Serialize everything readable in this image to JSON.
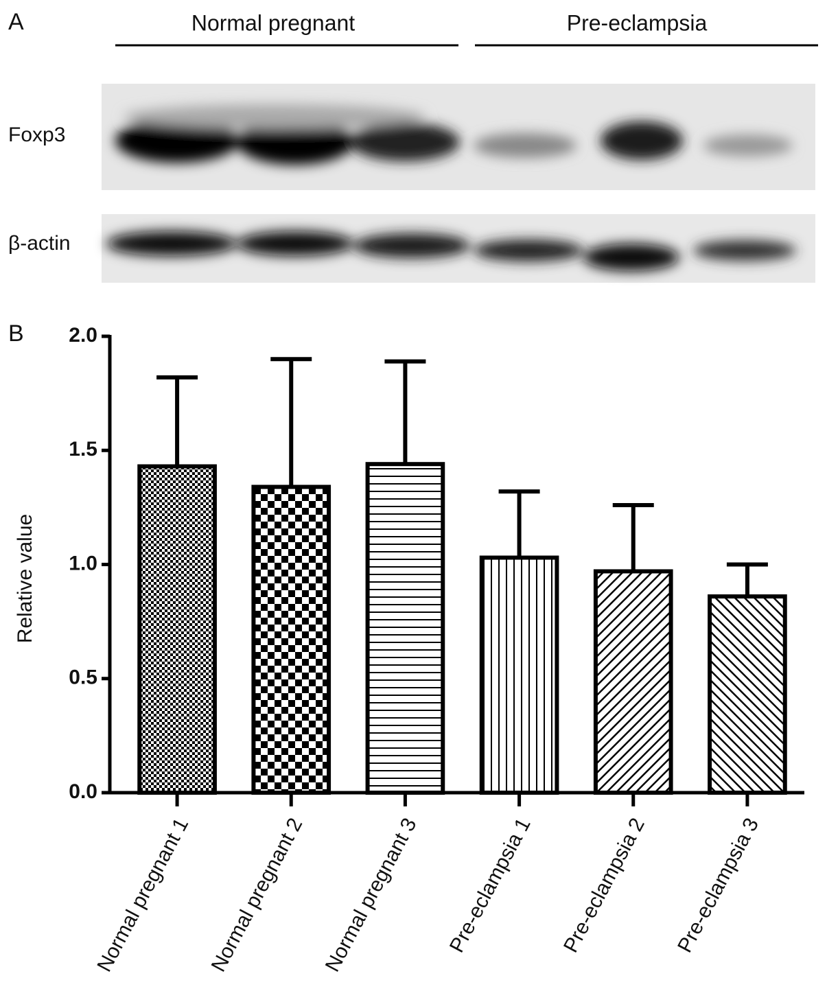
{
  "panel_a": {
    "label": "A",
    "groups": [
      "Normal pregnant",
      "Pre-eclampsia"
    ],
    "rows": [
      "Foxp3",
      "β-actin"
    ]
  },
  "chart_data": {
    "type": "bar",
    "panel_label": "B",
    "y_label": "Relative value",
    "categories": [
      "Normal pregnant 1",
      "Normal pregnant 2",
      "Normal pregnant 3",
      "Pre-eclampsia 1",
      "Pre-eclampsia 2",
      "Pre-eclampsia 3"
    ],
    "values": [
      1.43,
      1.34,
      1.44,
      1.03,
      0.97,
      0.86
    ],
    "errors": [
      0.39,
      0.56,
      0.45,
      0.29,
      0.29,
      0.14
    ],
    "ylim": [
      0,
      2
    ],
    "yticks": [
      {
        "value": 0,
        "label": "0.0"
      },
      {
        "value": 0.5,
        "label": "0.5"
      },
      {
        "value": 1,
        "label": "1.0"
      },
      {
        "value": 1.5,
        "label": "1.5"
      },
      {
        "value": 2,
        "label": "2.0"
      }
    ]
  }
}
